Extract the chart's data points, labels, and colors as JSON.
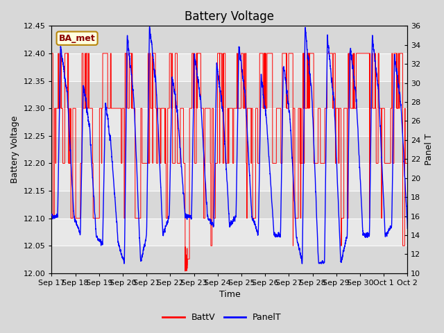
{
  "title": "Battery Voltage",
  "xlabel": "Time",
  "ylabel_left": "Battery Voltage",
  "ylabel_right": "Panel T",
  "ylim_left": [
    12.0,
    12.45
  ],
  "ylim_right": [
    10,
    36
  ],
  "yticks_left": [
    12.0,
    12.05,
    12.1,
    12.15,
    12.2,
    12.25,
    12.3,
    12.35,
    12.4,
    12.45
  ],
  "yticks_right": [
    10,
    12,
    14,
    16,
    18,
    20,
    22,
    24,
    26,
    28,
    30,
    32,
    34,
    36
  ],
  "xtick_labels": [
    "Sep 17",
    "Sep 18",
    "Sep 19",
    "Sep 20",
    "Sep 21",
    "Sep 22",
    "Sep 23",
    "Sep 24",
    "Sep 25",
    "Sep 26",
    "Sep 27",
    "Sep 28",
    "Sep 29",
    "Sep 30",
    "Oct 1",
    "Oct 2"
  ],
  "bg_color": "#d8d8d8",
  "plot_bg_alt1": "#e8e8e8",
  "plot_bg_alt2": "#d0d0d0",
  "grid_color": "#ffffff",
  "batt_color": "red",
  "panel_color": "blue",
  "legend_batt": "BattV",
  "legend_panel": "PanelT",
  "annotation_text": "BA_met",
  "annotation_fontsize": 9,
  "title_fontsize": 12,
  "label_fontsize": 9,
  "tick_fontsize": 8
}
